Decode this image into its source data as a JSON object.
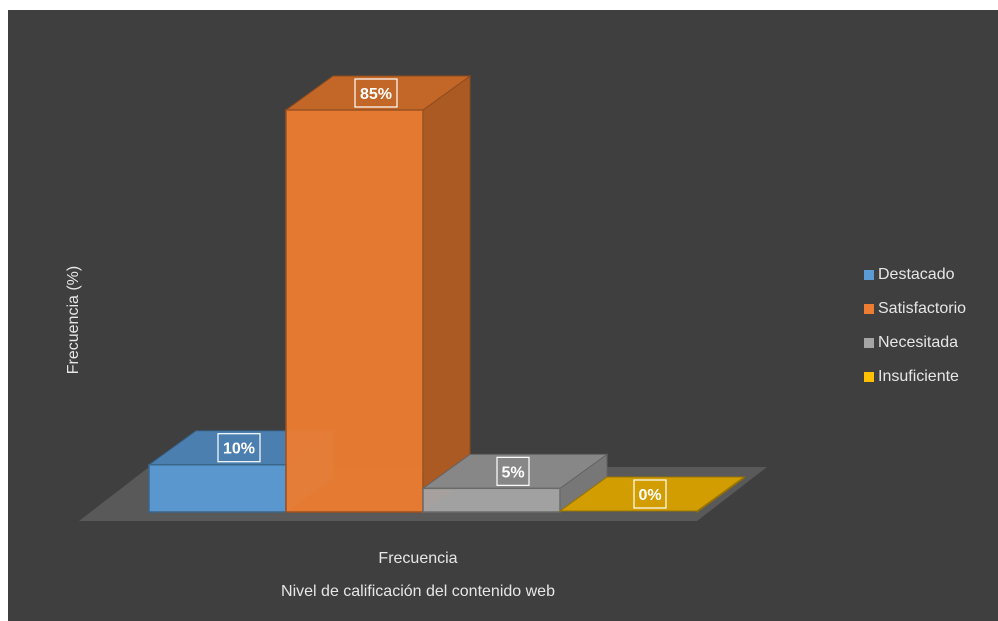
{
  "chart_data": {
    "type": "bar",
    "categories": [
      "Frecuencia"
    ],
    "series": [
      {
        "name": "Destacado",
        "values": [
          10
        ],
        "label": "10%",
        "color": "#5b9bd5"
      },
      {
        "name": "Satisfactorio",
        "values": [
          85
        ],
        "label": "85%",
        "color": "#ed7d31"
      },
      {
        "name": "Necesitada",
        "values": [
          5
        ],
        "label": "5%",
        "color": "#a5a5a5"
      },
      {
        "name": "Insuficiente",
        "values": [
          0
        ],
        "label": "0%",
        "color": "#ffc000"
      }
    ],
    "xlabel": "Nivel de calificación del contenido web",
    "ylabel": "Frecuencia (%)",
    "ylim": [
      0,
      100
    ],
    "legend": "right",
    "grid": false,
    "style": "3d-column"
  }
}
